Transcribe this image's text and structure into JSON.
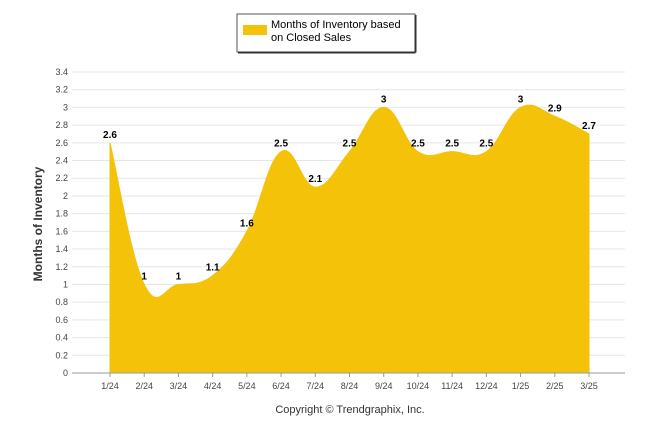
{
  "chart_data": {
    "type": "area",
    "categories": [
      "1/24",
      "2/24",
      "3/24",
      "4/24",
      "5/24",
      "6/24",
      "7/24",
      "8/24",
      "9/24",
      "10/24",
      "11/24",
      "12/24",
      "1/25",
      "2/25",
      "3/25"
    ],
    "series": [
      {
        "name": "Months of Inventory based on Closed Sales",
        "values": [
          2.6,
          1,
          1,
          1.1,
          1.6,
          2.5,
          2.1,
          2.5,
          3,
          2.5,
          2.5,
          2.5,
          3,
          2.9,
          2.7
        ],
        "labels": [
          "2.6",
          "1",
          "1",
          "1.1",
          "1.6",
          "2.5",
          "2.1",
          "2.5",
          "3",
          "2.5",
          "2.5",
          "2.5",
          "3",
          "2.9",
          "2.7"
        ],
        "color": "#f5c20a"
      }
    ],
    "ylabel": "Months of Inventory",
    "xlabel": "",
    "ylim": [
      0,
      3.4
    ],
    "yticks": [
      "0",
      "0.2",
      "0.4",
      "0.6",
      "0.8",
      "1",
      "1.2",
      "1.4",
      "1.6",
      "1.8",
      "2",
      "2.2",
      "2.4",
      "2.6",
      "2.8",
      "3",
      "3.2",
      "3.4"
    ],
    "grid": true,
    "legend": {
      "position": "top-center",
      "line1": "Months of Inventory based",
      "line2": "on Closed Sales"
    },
    "footer": "Copyright © Trendgraphix, Inc."
  }
}
